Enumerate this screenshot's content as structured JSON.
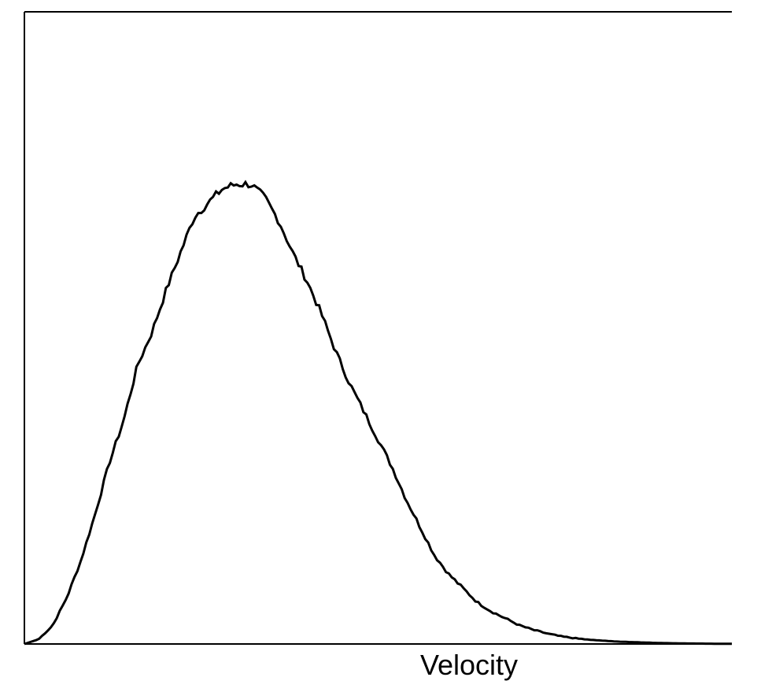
{
  "chart_data": {
    "type": "line",
    "title": "",
    "xlabel": "Velocity",
    "ylabel": "",
    "grid": false,
    "legend": "none",
    "xlim": [
      0,
      1
    ],
    "ylim": [
      0,
      1
    ],
    "colors": {
      "line": "#000000",
      "axes": "#000000",
      "background": "#ffffff"
    },
    "series": [
      {
        "x": [
          0.0,
          0.02,
          0.04,
          0.06,
          0.08,
          0.1,
          0.12,
          0.14,
          0.16,
          0.18,
          0.2,
          0.22,
          0.24,
          0.26,
          0.28,
          0.3,
          0.32,
          0.34,
          0.36,
          0.38,
          0.4,
          0.42,
          0.44,
          0.46,
          0.48,
          0.5,
          0.52,
          0.54,
          0.56,
          0.58,
          0.6,
          0.62,
          0.64,
          0.66,
          0.68,
          0.7,
          0.72,
          0.74,
          0.76,
          0.78,
          0.8,
          0.82,
          0.84,
          0.86,
          0.88,
          0.9,
          0.92,
          0.94,
          0.96,
          0.98,
          1.0
        ],
        "values": [
          0.0,
          0.01,
          0.04,
          0.1,
          0.18,
          0.28,
          0.39,
          0.48,
          0.6,
          0.67,
          0.76,
          0.84,
          0.92,
          0.95,
          0.98,
          0.99,
          0.99,
          0.96,
          0.91,
          0.84,
          0.78,
          0.71,
          0.63,
          0.56,
          0.5,
          0.44,
          0.38,
          0.31,
          0.25,
          0.19,
          0.15,
          0.12,
          0.09,
          0.07,
          0.055,
          0.04,
          0.03,
          0.022,
          0.016,
          0.012,
          0.009,
          0.007,
          0.005,
          0.004,
          0.003,
          0.002,
          0.0015,
          0.001,
          0.0008,
          0.0005,
          0.0003
        ]
      }
    ]
  }
}
